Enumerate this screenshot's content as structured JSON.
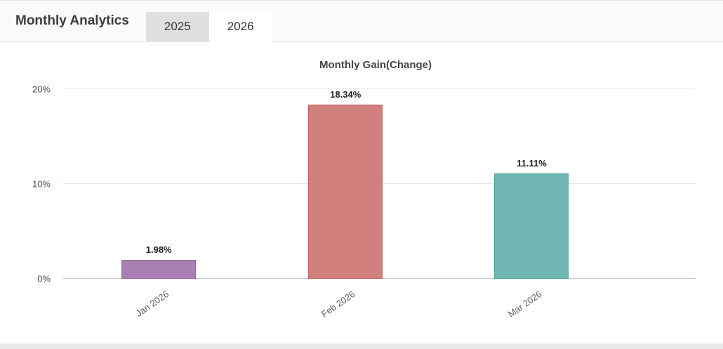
{
  "header": {
    "title": "Monthly Analytics",
    "tabs": [
      {
        "label": "2025",
        "active": false
      },
      {
        "label": "2026",
        "active": true
      }
    ]
  },
  "chart_data": {
    "type": "bar",
    "title": "Monthly Gain(Change)",
    "categories": [
      "Jan 2026",
      "Feb 2026",
      "Mar 2026"
    ],
    "values": [
      1.98,
      18.34,
      11.11
    ],
    "value_labels": [
      "1.98%",
      "18.34%",
      "11.11%"
    ],
    "bar_colors": [
      "#a97fb4",
      "#d17f7c",
      "#6fb5b2"
    ],
    "bar_border_colors": [
      "#9065a0",
      "#ba615e",
      "#52a09d"
    ],
    "ylim": [
      0,
      20
    ],
    "yticks": [
      0,
      10,
      20
    ],
    "ytick_labels": [
      "0%",
      "10%",
      "20%"
    ],
    "bar_centers_pct": [
      15.1,
      44.6,
      74.0
    ],
    "grid": true,
    "legend": false
  }
}
